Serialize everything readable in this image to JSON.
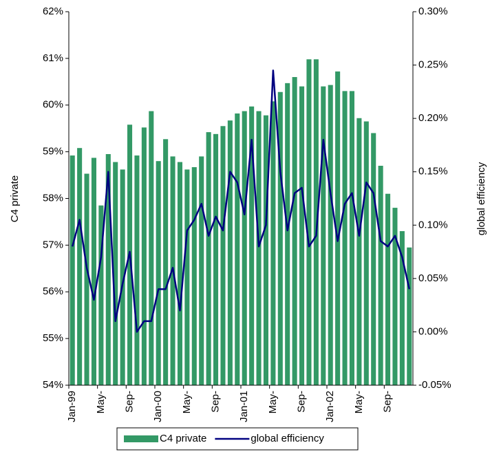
{
  "chart_data": {
    "type": "bar-line",
    "y_label": "C4 private",
    "y2_label": "global efficiency",
    "categories": [
      "Jan-99",
      null,
      null,
      null,
      "May-",
      null,
      null,
      null,
      "Sep-",
      null,
      null,
      null,
      "Jan-00",
      null,
      null,
      null,
      "May-",
      null,
      null,
      null,
      "Sep-",
      null,
      null,
      null,
      "Jan-01",
      null,
      null,
      null,
      "May-",
      null,
      null,
      null,
      "Sep-",
      null,
      null,
      null,
      "Jan-02",
      null,
      null,
      null,
      "May-",
      null,
      null,
      null,
      "Sep-",
      null,
      null,
      null
    ],
    "series": [
      {
        "name": "C4 private",
        "kind": "bar",
        "color": "#339966",
        "values": [
          58.92,
          59.08,
          58.53,
          58.87,
          57.85,
          58.95,
          58.78,
          58.62,
          59.58,
          58.92,
          59.52,
          59.87,
          58.8,
          59.27,
          58.9,
          58.78,
          58.62,
          58.67,
          58.9,
          59.42,
          59.38,
          59.55,
          59.67,
          59.82,
          59.87,
          59.97,
          59.87,
          59.78,
          60.08,
          60.28,
          60.47,
          60.6,
          60.4,
          60.98,
          60.98,
          60.4,
          60.43,
          60.72,
          60.3,
          60.3,
          59.72,
          59.65,
          59.4,
          58.7,
          58.1,
          57.8,
          57.3,
          56.95
        ]
      },
      {
        "name": "global efficiency",
        "kind": "line",
        "axis": "y2",
        "color": "#000080",
        "values": [
          0.08,
          0.105,
          0.06,
          0.03,
          0.07,
          0.15,
          0.01,
          0.045,
          0.075,
          0.0,
          0.01,
          0.01,
          0.04,
          0.04,
          0.06,
          0.02,
          0.095,
          0.105,
          0.12,
          0.09,
          0.108,
          0.095,
          0.15,
          0.14,
          0.11,
          0.18,
          0.08,
          0.1,
          0.245,
          0.15,
          0.095,
          0.13,
          0.135,
          0.08,
          0.09,
          0.18,
          0.13,
          0.085,
          0.12,
          0.13,
          0.09,
          0.14,
          0.13,
          0.085,
          0.08,
          0.09,
          0.07,
          0.04
        ]
      }
    ],
    "ylim": [
      54,
      62
    ],
    "yticks": [
      {
        "value": 54,
        "label": "54%"
      },
      {
        "value": 55,
        "label": "55%"
      },
      {
        "value": 56,
        "label": "56%"
      },
      {
        "value": 57,
        "label": "57%"
      },
      {
        "value": 58,
        "label": "58%"
      },
      {
        "value": 59,
        "label": "59%"
      },
      {
        "value": 60,
        "label": "60%"
      },
      {
        "value": 61,
        "label": "61%"
      },
      {
        "value": 62,
        "label": "62%"
      }
    ],
    "y2lim": [
      -0.05,
      0.3
    ],
    "y2ticks": [
      {
        "value": -0.05,
        "label": "-0.05%"
      },
      {
        "value": 0,
        "label": "0.00%"
      },
      {
        "value": 0.05,
        "label": "0.05%"
      },
      {
        "value": 0.1,
        "label": "0.10%"
      },
      {
        "value": 0.15,
        "label": "0.15%"
      },
      {
        "value": 0.2,
        "label": "0.20%"
      },
      {
        "value": 0.25,
        "label": "0.25%"
      },
      {
        "value": 0.3,
        "label": "0.30%"
      }
    ],
    "legend": "bottom"
  }
}
